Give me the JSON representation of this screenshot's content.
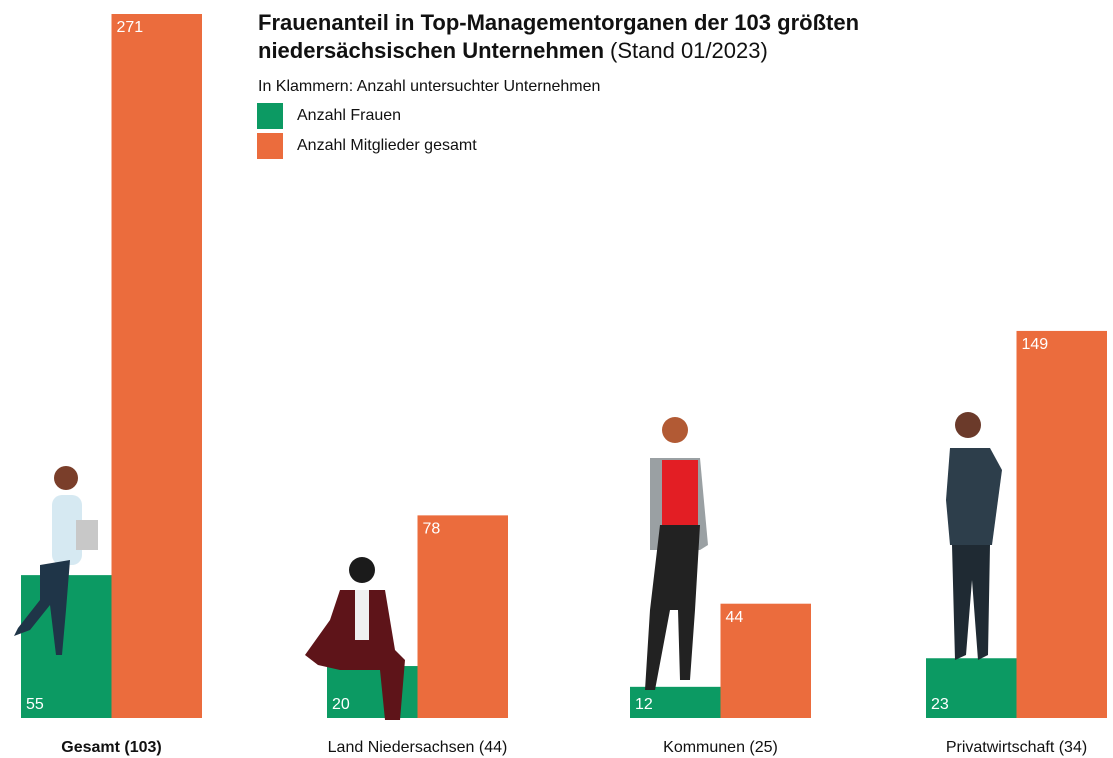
{
  "chart_data": {
    "type": "bar",
    "title": [
      "Frauenanteil in Top-Managementorganen der 103 größten",
      "niedersächsischen Unternehmen"
    ],
    "title_note": "(Stand 01/2023)",
    "subtitle": "In Klammern: Anzahl untersuchter Unternehmen",
    "categories": [
      "Gesamt (103)",
      "Land Niedersachsen (44)",
      "Kommunen (25)",
      "Privatwirtschaft (34)"
    ],
    "series": [
      {
        "name": "Anzahl Frauen",
        "color": "#0c9a63",
        "values": [
          55,
          20,
          12,
          23
        ]
      },
      {
        "name": "Anzahl Mitglieder gesamt",
        "color": "#eb6c3d",
        "values": [
          271,
          78,
          44,
          149
        ]
      }
    ]
  }
}
